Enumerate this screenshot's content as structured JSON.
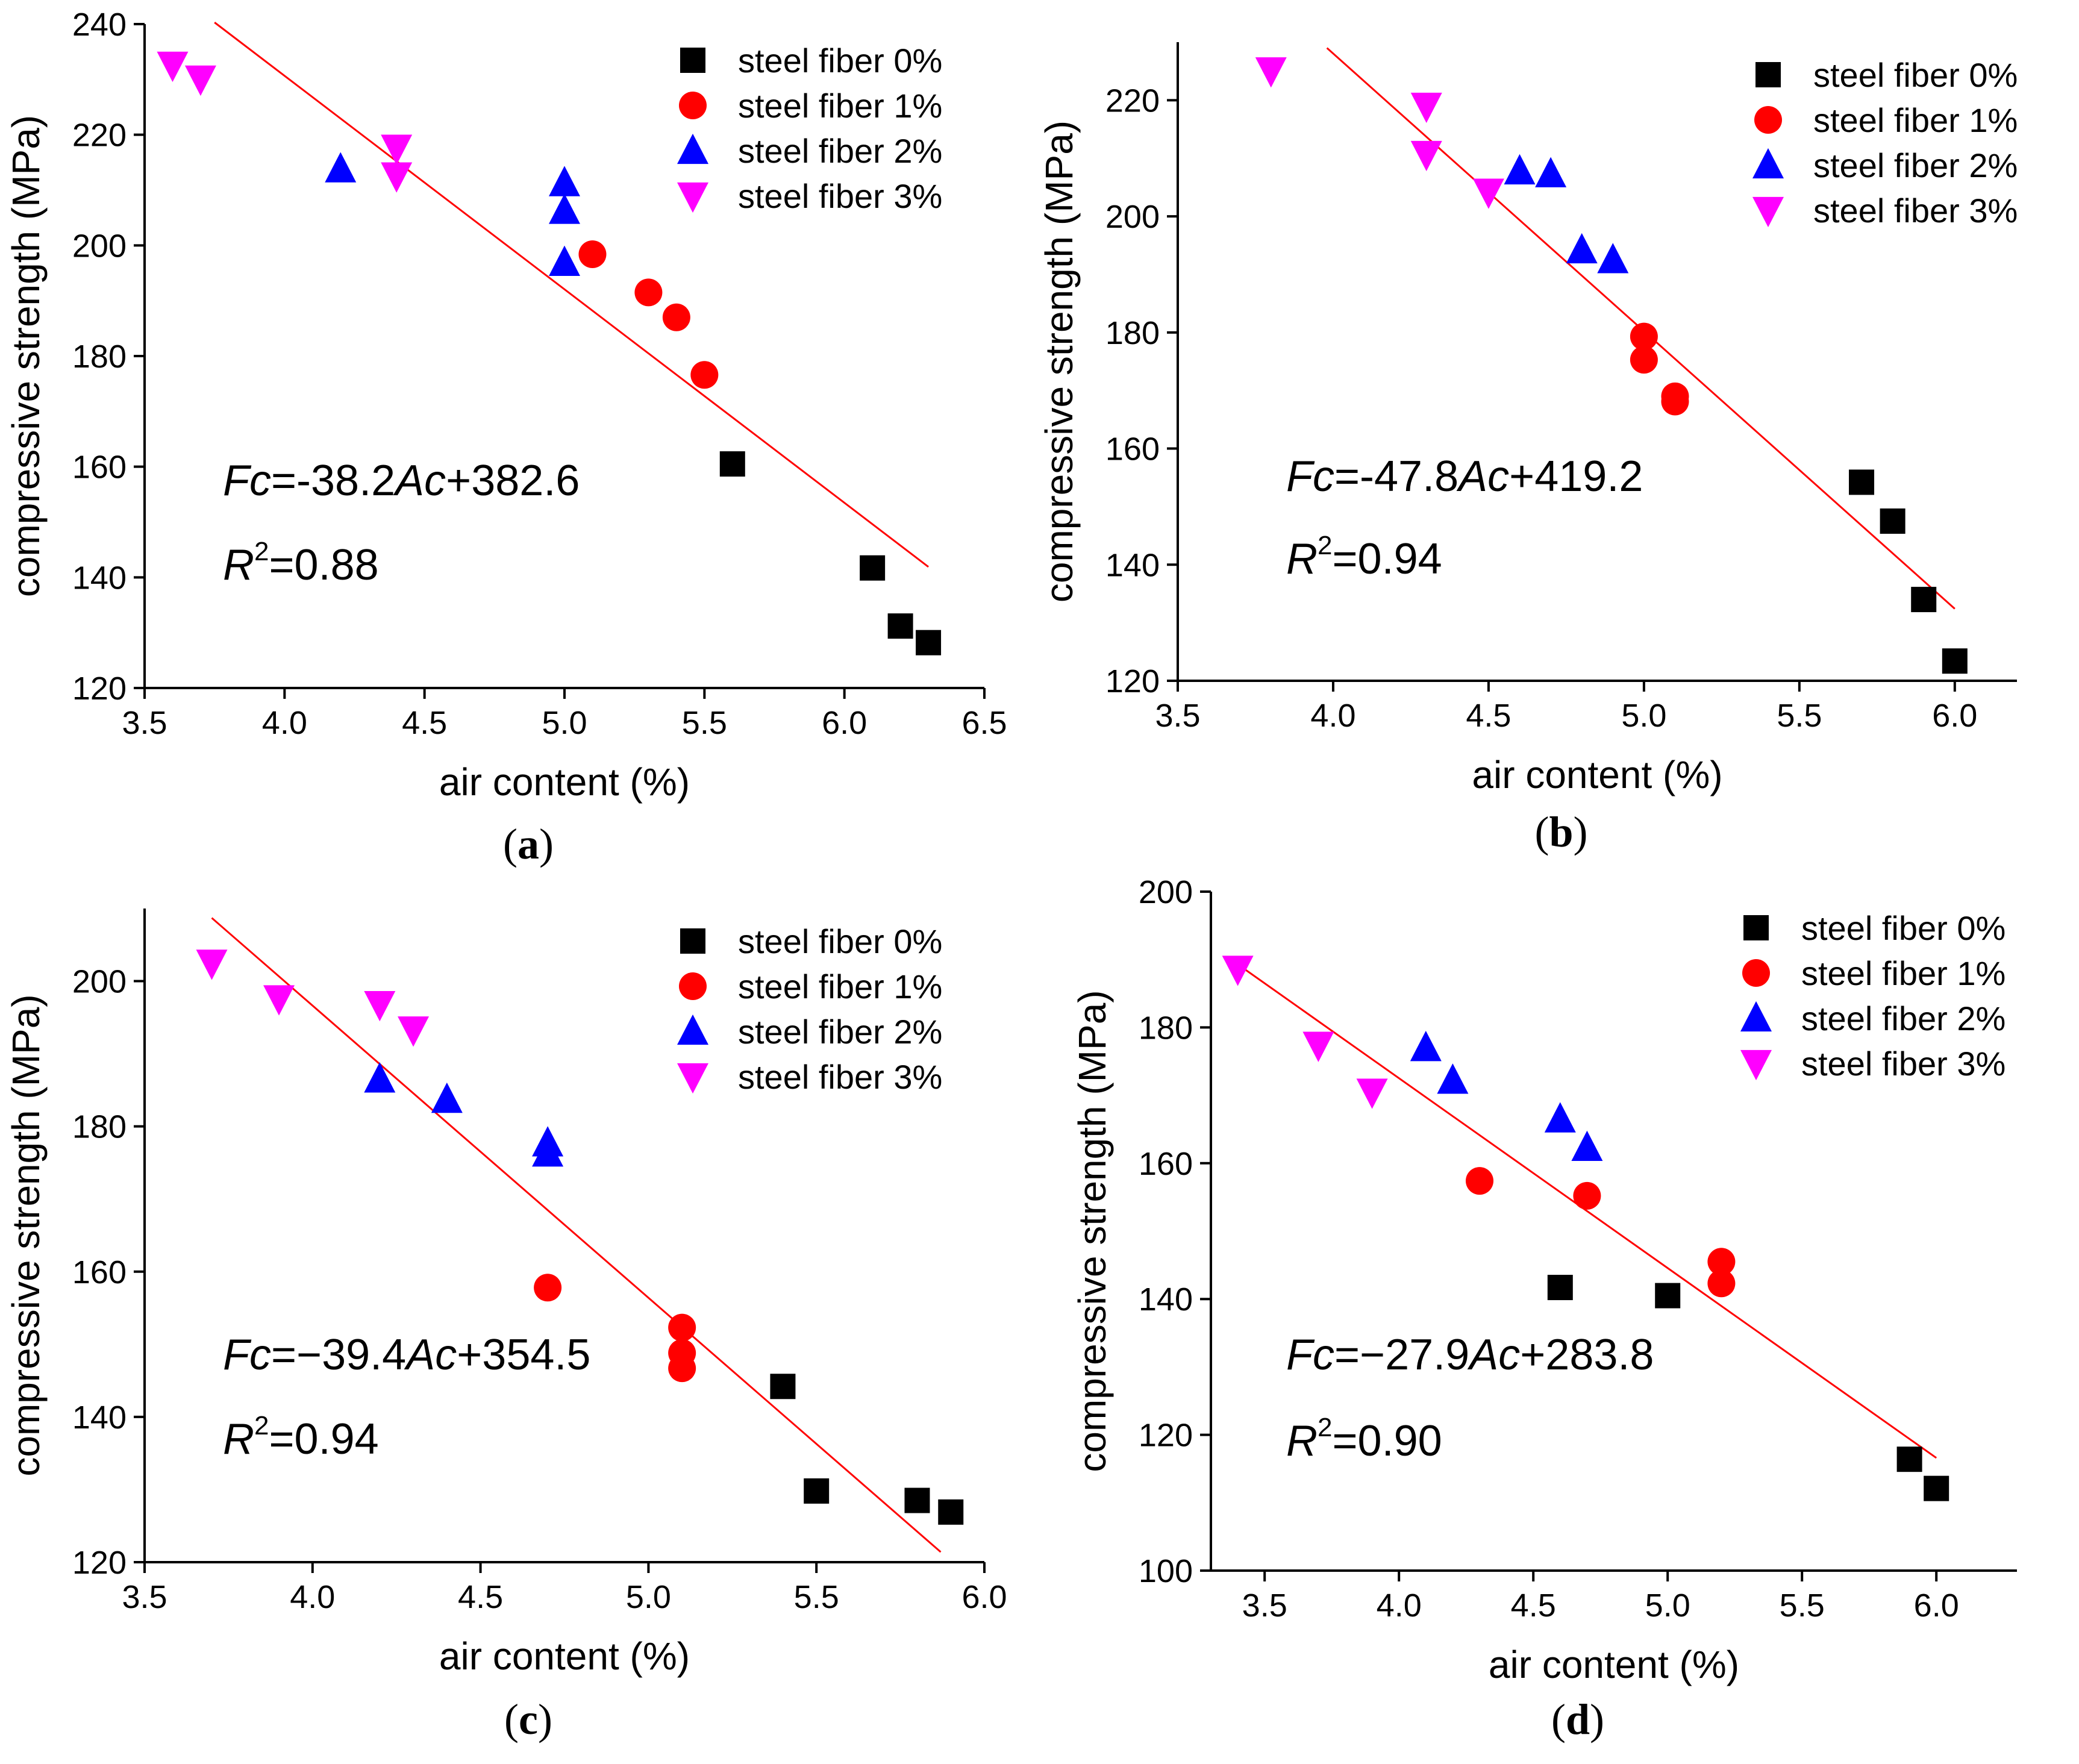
{
  "chart_data": [
    {
      "type": "scatter",
      "label": "(a)",
      "label_letter": "a",
      "xlabel": "air content (%)",
      "ylabel": "compressive strength (MPa)",
      "xlim": [
        3.5,
        6.5
      ],
      "ylim": [
        120,
        240
      ],
      "xticks": [
        3.5,
        4.0,
        4.5,
        5.0,
        5.5,
        6.0,
        6.5
      ],
      "xtick_labels": [
        "3.5",
        "4.0",
        "4.5",
        "5.0",
        "5.5",
        "6.0",
        "6.5"
      ],
      "yticks": [
        120,
        140,
        160,
        180,
        200,
        220,
        240
      ],
      "ytick_labels": [
        "120",
        "140",
        "160",
        "180",
        "200",
        "220",
        "240"
      ],
      "legend_position": "top-right",
      "series": [
        {
          "name": "steel fiber 0%",
          "marker": "square",
          "color": "#000000",
          "points": [
            [
              5.6,
              160.5
            ],
            [
              6.1,
              141.7
            ],
            [
              6.2,
              131.2
            ],
            [
              6.3,
              128.2
            ]
          ]
        },
        {
          "name": "steel fiber 1%",
          "marker": "circle",
          "color": "#ff0000",
          "points": [
            [
              5.1,
              198.4
            ],
            [
              5.3,
              191.5
            ],
            [
              5.4,
              187.0
            ],
            [
              5.5,
              176.6
            ]
          ]
        },
        {
          "name": "steel fiber 2%",
          "marker": "triangle-up",
          "color": "#0000ff",
          "points": [
            [
              4.2,
              213.8
            ],
            [
              5.0,
              211.3
            ],
            [
              5.0,
              206.3
            ],
            [
              5.0,
              196.9
            ]
          ]
        },
        {
          "name": "steel fiber 3%",
          "marker": "triangle-down",
          "color": "#ff00ff",
          "points": [
            [
              3.6,
              232.6
            ],
            [
              3.7,
              230.1
            ],
            [
              4.4,
              217.6
            ],
            [
              4.4,
              212.6
            ]
          ]
        }
      ],
      "fit_line": {
        "x": [
          3.75,
          6.3
        ],
        "y": [
          240.3,
          141.9
        ],
        "color": "#ff0000"
      },
      "equation": {
        "lhs": "Fc",
        "eq": "=",
        "rhs_pre": "-38.2",
        "var": "Ac",
        "rhs_post": "+382.6"
      },
      "r2": {
        "symbol": "R",
        "exponent": "2",
        "value": "=0.88"
      }
    },
    {
      "type": "scatter",
      "label": "(b)",
      "label_letter": "b",
      "xlabel": "air content (%)",
      "ylabel": "compressive strength (MPa)",
      "xlim": [
        3.5,
        6.2
      ],
      "ylim": [
        120,
        230
      ],
      "xticks": [
        3.5,
        4.0,
        4.5,
        5.0,
        5.5,
        6.0
      ],
      "xtick_labels": [
        "3.5",
        "4.0",
        "4.5",
        "5.0",
        "5.5",
        "6.0"
      ],
      "yticks": [
        120,
        140,
        160,
        180,
        200,
        220
      ],
      "ytick_labels": [
        "120",
        "140",
        "160",
        "180",
        "200",
        "220"
      ],
      "legend_position": "top-right",
      "series": [
        {
          "name": "steel fiber 0%",
          "marker": "square",
          "color": "#000000",
          "points": [
            [
              5.7,
              154.2
            ],
            [
              5.8,
              147.5
            ],
            [
              5.9,
              134.0
            ],
            [
              6.0,
              123.4
            ]
          ]
        },
        {
          "name": "steel fiber 1%",
          "marker": "circle",
          "color": "#ff0000",
          "points": [
            [
              5.0,
              179.3
            ],
            [
              5.0,
              175.3
            ],
            [
              5.1,
              169.0
            ],
            [
              5.1,
              168.1
            ]
          ]
        },
        {
          "name": "steel fiber 2%",
          "marker": "triangle-up",
          "color": "#0000ff",
          "points": [
            [
              4.6,
              207.8
            ],
            [
              4.7,
              207.3
            ],
            [
              4.8,
              194.2
            ],
            [
              4.9,
              192.5
            ]
          ]
        },
        {
          "name": "steel fiber 3%",
          "marker": "triangle-down",
          "color": "#ff00ff",
          "points": [
            [
              3.8,
              225.1
            ],
            [
              4.3,
              219.0
            ],
            [
              4.3,
              210.7
            ],
            [
              4.5,
              204.2
            ]
          ]
        }
      ],
      "fit_line": {
        "x": [
          3.98,
          6.0
        ],
        "y": [
          229.0,
          132.4
        ],
        "color": "#ff0000"
      },
      "equation": {
        "lhs": "Fc",
        "eq": "=",
        "rhs_pre": "-47.8",
        "var": "Ac",
        "rhs_post": "+419.2"
      },
      "r2": {
        "symbol": "R",
        "exponent": "2",
        "value": "=0.94"
      }
    },
    {
      "type": "scatter",
      "label": "(c)",
      "label_letter": "c",
      "xlabel": "air content (%)",
      "ylabel": "compressive strength (MPa)",
      "xlim": [
        3.5,
        6.0
      ],
      "ylim": [
        120,
        210
      ],
      "xticks": [
        3.5,
        4.0,
        4.5,
        5.0,
        5.5,
        6.0
      ],
      "xtick_labels": [
        "3.5",
        "4.0",
        "4.5",
        "5.0",
        "5.5",
        "6.0"
      ],
      "yticks": [
        120,
        140,
        160,
        180,
        200
      ],
      "ytick_labels": [
        "120",
        "140",
        "160",
        "180",
        "200"
      ],
      "legend_position": "top-right",
      "series": [
        {
          "name": "steel fiber 0%",
          "marker": "square",
          "color": "#000000",
          "points": [
            [
              5.4,
              144.2
            ],
            [
              5.5,
              129.8
            ],
            [
              5.8,
              128.5
            ],
            [
              5.9,
              126.9
            ]
          ]
        },
        {
          "name": "steel fiber 1%",
          "marker": "circle",
          "color": "#ff0000",
          "points": [
            [
              4.7,
              157.8
            ],
            [
              5.1,
              152.3
            ],
            [
              5.1,
              148.8
            ],
            [
              5.1,
              146.7
            ]
          ]
        },
        {
          "name": "steel fiber 2%",
          "marker": "triangle-up",
          "color": "#0000ff",
          "points": [
            [
              4.2,
              186.5
            ],
            [
              4.4,
              183.7
            ],
            [
              4.7,
              177.7
            ],
            [
              4.7,
              176.3
            ]
          ]
        },
        {
          "name": "steel fiber 3%",
          "marker": "triangle-down",
          "color": "#ff00ff",
          "points": [
            [
              3.7,
              202.5
            ],
            [
              3.9,
              197.6
            ],
            [
              4.2,
              196.8
            ],
            [
              4.3,
              193.3
            ]
          ]
        }
      ],
      "fit_line": {
        "x": [
          3.7,
          5.87
        ],
        "y": [
          208.7,
          121.4
        ],
        "color": "#ff0000"
      },
      "equation": {
        "lhs": "Fc",
        "eq": "=",
        "rhs_pre": "−39.4",
        "var": "Ac",
        "rhs_post": "+354.5"
      },
      "r2": {
        "symbol": "R",
        "exponent": "2",
        "value": "=0.94"
      }
    },
    {
      "type": "scatter",
      "label": "(d)",
      "label_letter": "d",
      "xlabel": "air content (%)",
      "ylabel": "compressive strength (MPa)",
      "xlim": [
        3.3,
        6.3
      ],
      "ylim": [
        100,
        200
      ],
      "xticks": [
        3.5,
        4.0,
        4.5,
        5.0,
        5.5,
        6.0
      ],
      "xtick_labels": [
        "3.5",
        "4.0",
        "4.5",
        "5.0",
        "5.5",
        "6.0"
      ],
      "yticks": [
        100,
        120,
        140,
        160,
        180,
        200
      ],
      "ytick_labels": [
        "100",
        "120",
        "140",
        "160",
        "180",
        "200"
      ],
      "legend_position": "top-right",
      "series": [
        {
          "name": "steel fiber 0%",
          "marker": "square",
          "color": "#000000",
          "points": [
            [
              4.6,
              141.7
            ],
            [
              5.0,
              140.5
            ],
            [
              5.9,
              116.4
            ],
            [
              6.0,
              112.1
            ]
          ]
        },
        {
          "name": "steel fiber 1%",
          "marker": "circle",
          "color": "#ff0000",
          "points": [
            [
              4.3,
              157.4
            ],
            [
              4.7,
              155.2
            ],
            [
              5.2,
              145.5
            ],
            [
              5.2,
              142.3
            ]
          ]
        },
        {
          "name": "steel fiber 2%",
          "marker": "triangle-up",
          "color": "#0000ff",
          "points": [
            [
              4.1,
              177.0
            ],
            [
              4.2,
              172.2
            ],
            [
              4.6,
              166.5
            ],
            [
              4.7,
              162.3
            ]
          ]
        },
        {
          "name": "steel fiber 3%",
          "marker": "triangle-down",
          "color": "#ff00ff",
          "points": [
            [
              3.4,
              188.6
            ],
            [
              3.7,
              177.4
            ],
            [
              3.9,
              170.5
            ]
          ]
        }
      ],
      "fit_line": {
        "x": [
          3.4,
          6.0
        ],
        "y": [
          189.3,
          116.6
        ],
        "color": "#ff0000"
      },
      "equation": {
        "lhs": "Fc",
        "eq": "=",
        "rhs_pre": "−27.9",
        "var": "Ac",
        "rhs_post": "+283.8"
      },
      "r2": {
        "symbol": "R",
        "exponent": "2",
        "value": "=0.90"
      }
    }
  ]
}
